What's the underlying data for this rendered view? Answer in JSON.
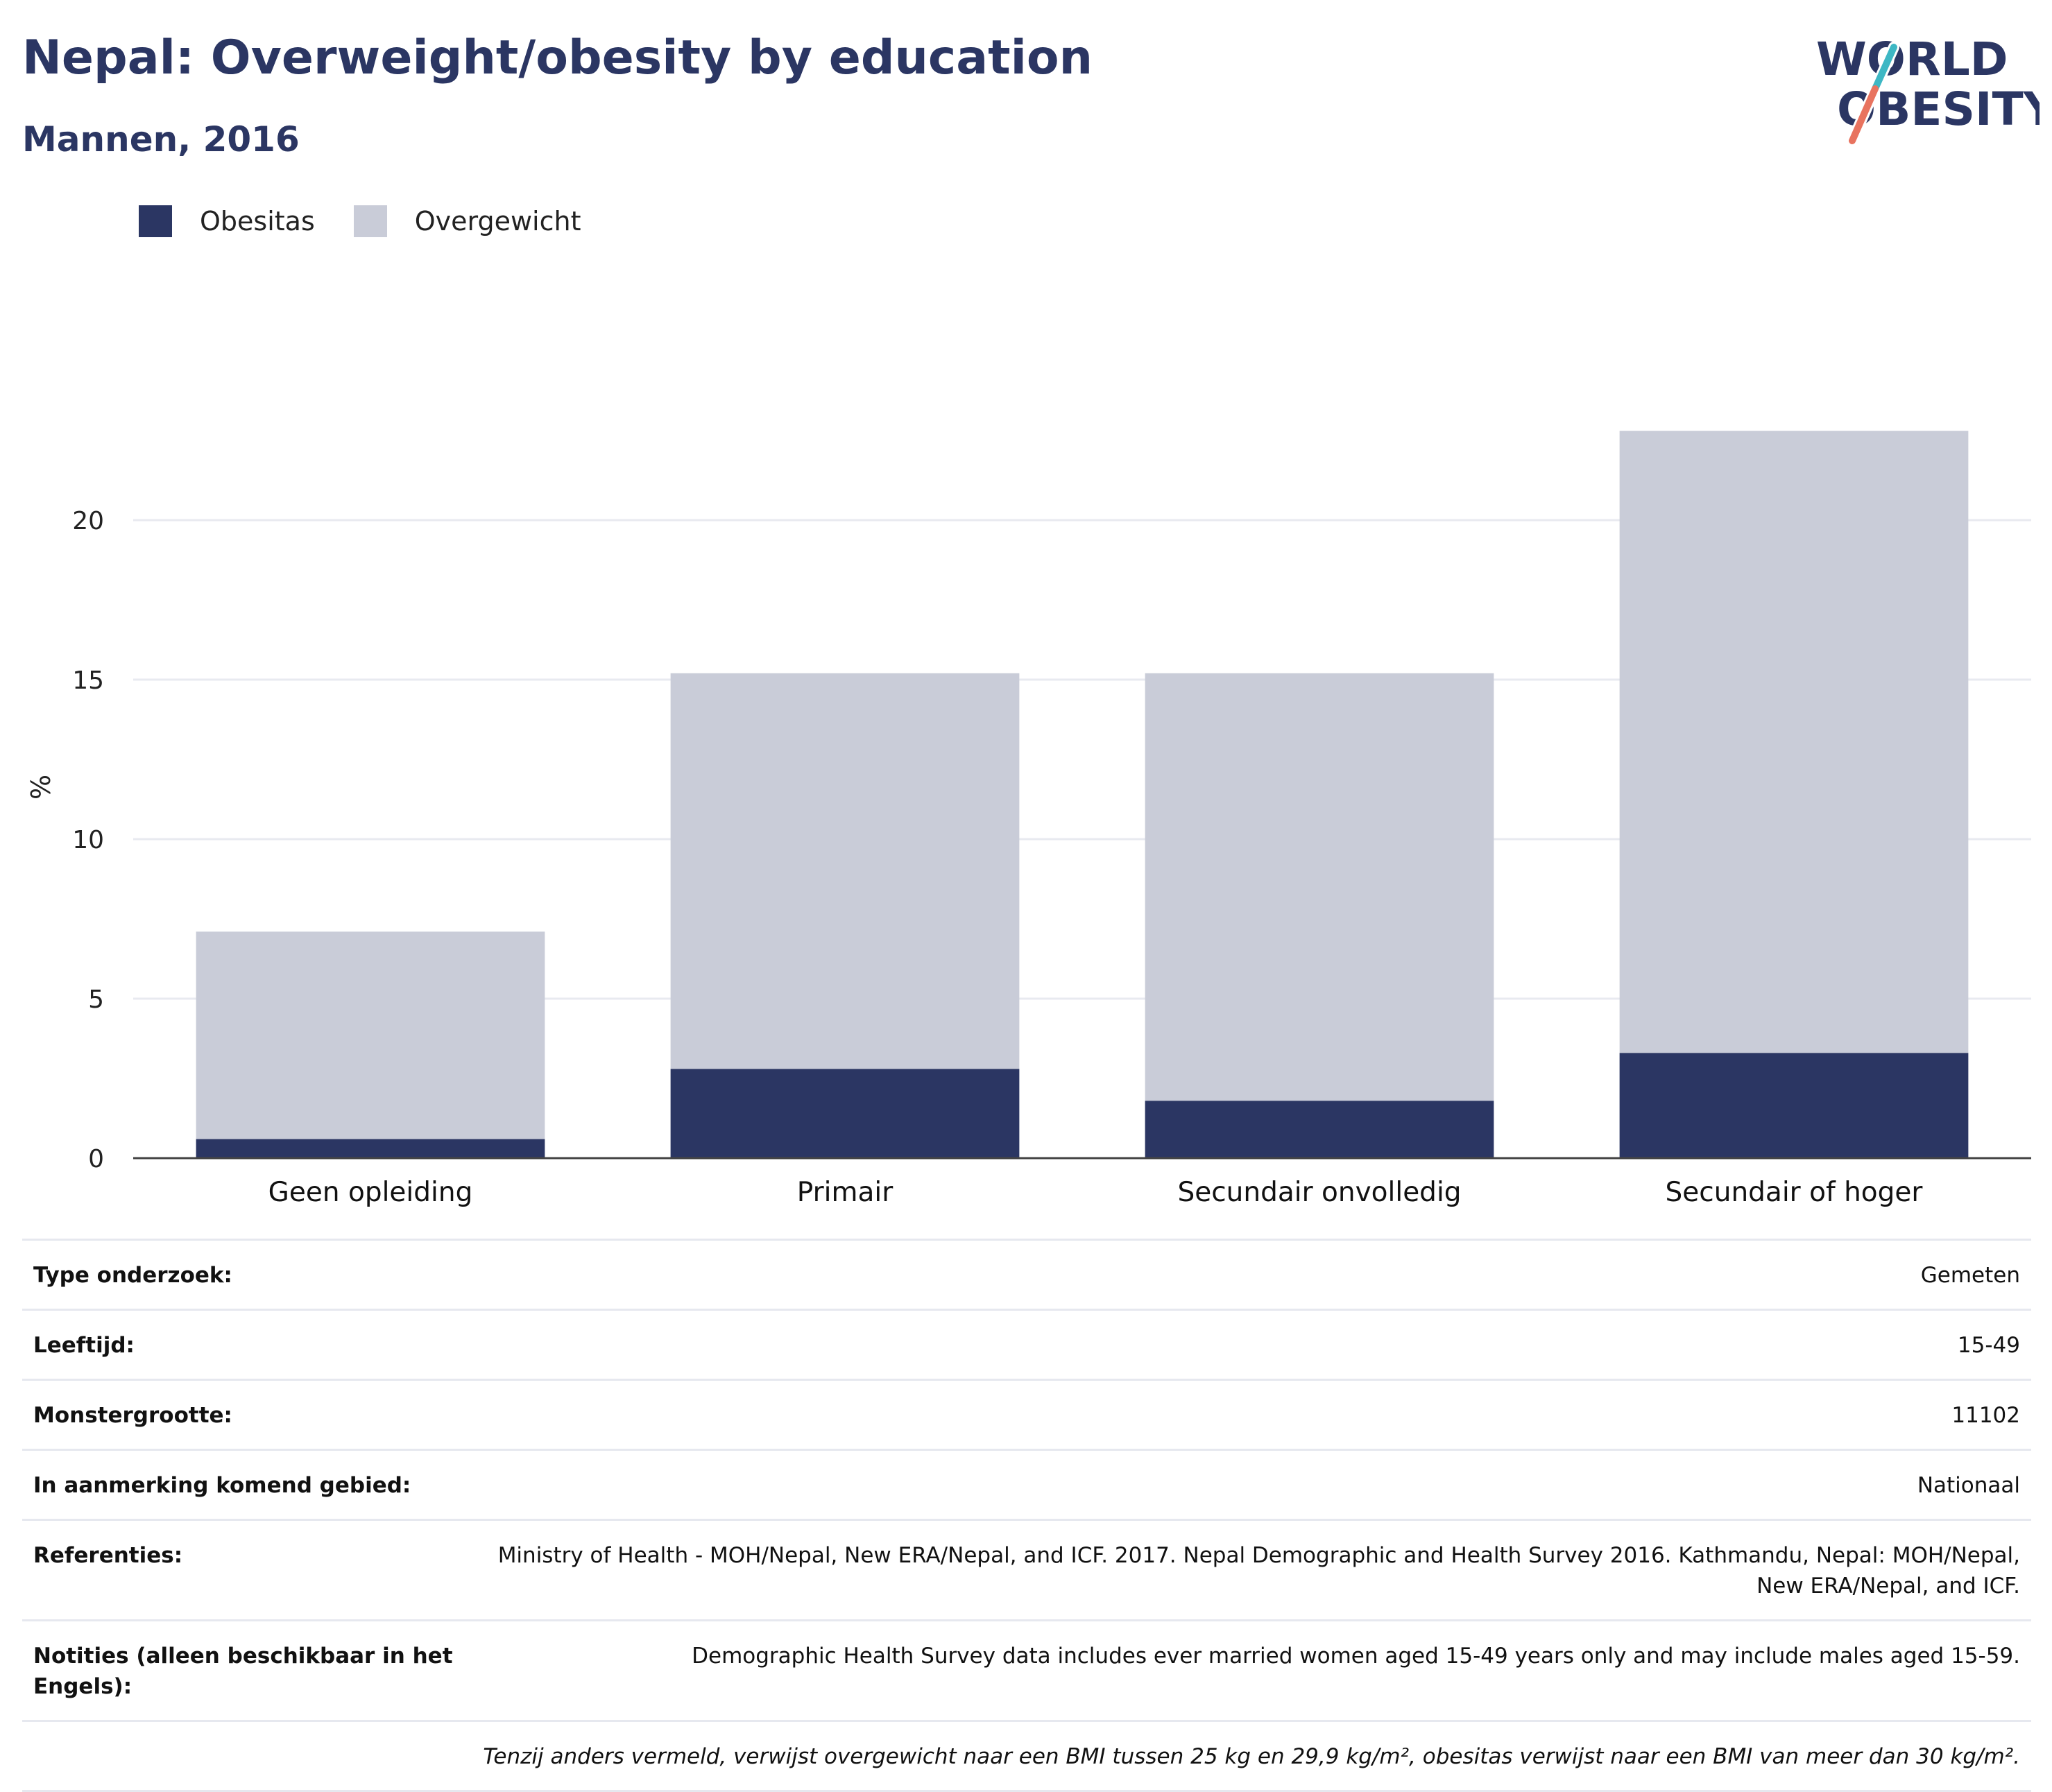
{
  "header": {
    "title": "Nepal: Overweight/obesity by education",
    "subtitle": "Mannen, 2016"
  },
  "logo": {
    "line1": "WORLD",
    "line2": "OBESITY"
  },
  "colors": {
    "obesity": "#2b3663",
    "overweight": "#c9ccd8",
    "title": "#2b3663",
    "logo_text": "#2b3663",
    "logo_slash_top": "#3db7c4",
    "logo_slash_bottom": "#e8735f",
    "grid": "#e8eaf0",
    "axis": "#444444"
  },
  "chart_data": {
    "type": "bar",
    "stacked": true,
    "categories": [
      "Geen opleiding",
      "Primair",
      "Secundair onvolledig",
      "Secundair of hoger"
    ],
    "series": [
      {
        "name": "Obesitas",
        "values": [
          0.6,
          2.8,
          1.8,
          3.3
        ]
      },
      {
        "name": "Overgewicht",
        "values": [
          6.5,
          12.4,
          13.4,
          19.5
        ]
      }
    ],
    "ylabel": "%",
    "xlabel": "",
    "ylim": [
      0,
      25
    ],
    "yticks": [
      0,
      5,
      10,
      15,
      20
    ],
    "grid": true,
    "legend": "top-left"
  },
  "info": {
    "rows": [
      {
        "label": "Type onderzoek:",
        "value": "Gemeten"
      },
      {
        "label": "Leeftijd:",
        "value": "15-49"
      },
      {
        "label": "Monstergrootte:",
        "value": "11102"
      },
      {
        "label": "In aanmerking komend gebied:",
        "value": "Nationaal"
      },
      {
        "label": "Referenties:",
        "value": "Ministry of Health - MOH/Nepal, New ERA/Nepal, and ICF. 2017. Nepal Demographic and Health Survey 2016. Kathmandu, Nepal: MOH/Nepal, New ERA/Nepal, and ICF."
      },
      {
        "label": "Notities (alleen beschikbaar in het Engels):",
        "value": "Demographic Health Survey data includes ever married women aged 15-49 years only and may include males aged 15-59."
      }
    ],
    "footnote": "Tenzij anders vermeld, verwijst overgewicht naar een BMI tussen 25 kg en 29,9 kg/m², obesitas verwijst naar een BMI van meer dan 30 kg/m²."
  }
}
